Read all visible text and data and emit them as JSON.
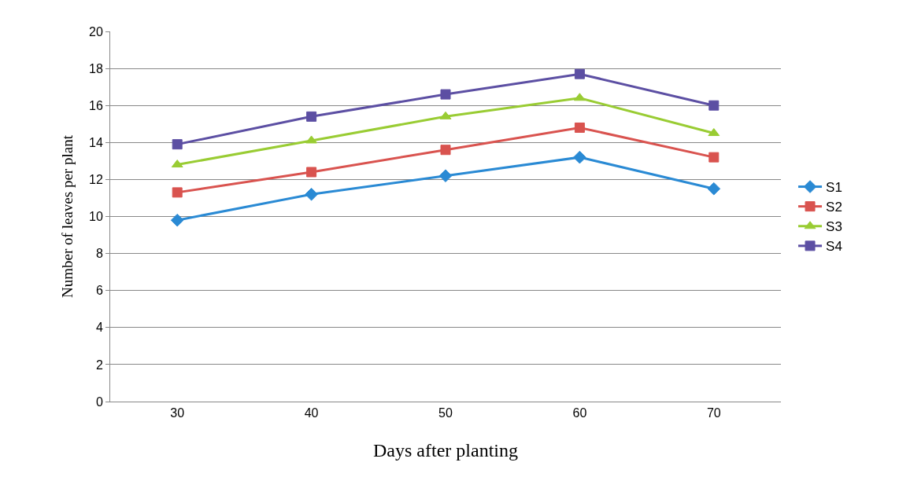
{
  "chart_data": {
    "type": "line",
    "xlabel": "Days after planting",
    "ylabel": "Number of leaves per plant",
    "categories": [
      "30",
      "40",
      "50",
      "60",
      "70"
    ],
    "series": [
      {
        "name": "S1",
        "color": "#2a8ad4",
        "marker": "diamond",
        "values": [
          9.8,
          11.2,
          12.2,
          13.2,
          11.5
        ]
      },
      {
        "name": "S2",
        "color": "#d9534f",
        "marker": "square",
        "values": [
          11.3,
          12.4,
          13.6,
          14.8,
          13.2
        ]
      },
      {
        "name": "S3",
        "color": "#99cc33",
        "marker": "triangle",
        "values": [
          12.8,
          14.1,
          15.4,
          16.4,
          14.5
        ]
      },
      {
        "name": "S4",
        "color": "#5c4fa3",
        "marker": "square",
        "values": [
          13.9,
          15.4,
          16.6,
          17.7,
          16.0
        ]
      }
    ],
    "ylim": [
      0,
      20
    ],
    "yticks": [
      0,
      2,
      4,
      6,
      8,
      10,
      12,
      14,
      16,
      18,
      20
    ],
    "grid": "y",
    "legend": "right",
    "line_style": "solid"
  }
}
